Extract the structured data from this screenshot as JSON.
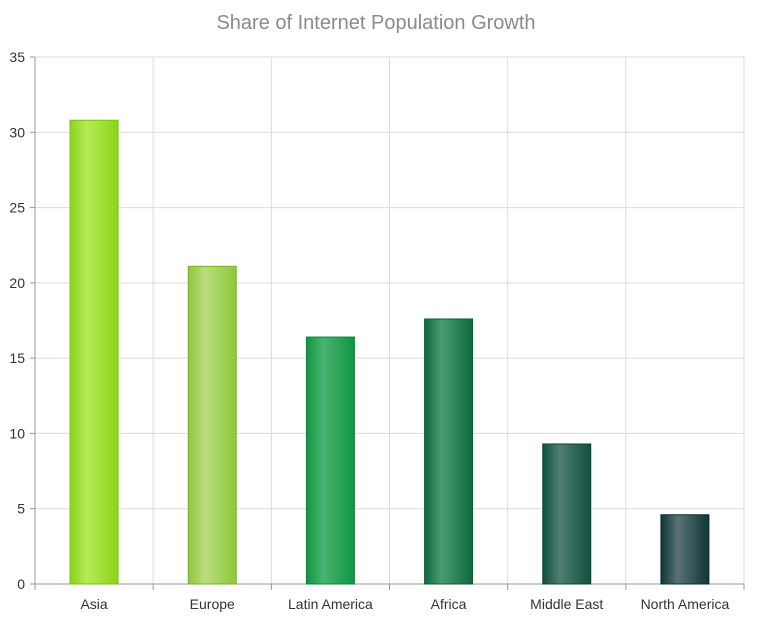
{
  "chart_data": {
    "type": "bar",
    "title": "Share of Internet Population Growth",
    "xlabel": "",
    "ylabel": "",
    "categories": [
      "Asia",
      "Europe",
      "Latin America",
      "Africa",
      "Middle East",
      "North America"
    ],
    "values": [
      30.8,
      21.1,
      16.4,
      17.6,
      9.3,
      4.6
    ],
    "ylim": [
      0,
      35
    ],
    "yticks": [
      0,
      5,
      10,
      15,
      20,
      25,
      30,
      35
    ],
    "grid": true,
    "legend": "none",
    "colors": [
      {
        "light": "#b6ea5a",
        "dark": "#8bd417",
        "stroke": "#7cc010"
      },
      {
        "light": "#bcdc80",
        "dark": "#8ec838",
        "stroke": "#7cb02a"
      },
      {
        "light": "#49b472",
        "dark": "#119440",
        "stroke": "#0d8538"
      },
      {
        "light": "#4a9a72",
        "dark": "#0d6a3e",
        "stroke": "#0b5d36"
      },
      {
        "light": "#4f7f72",
        "dark": "#11503e",
        "stroke": "#0e4636"
      },
      {
        "light": "#5a7275",
        "dark": "#0f3638",
        "stroke": "#0c2f30"
      }
    ]
  }
}
